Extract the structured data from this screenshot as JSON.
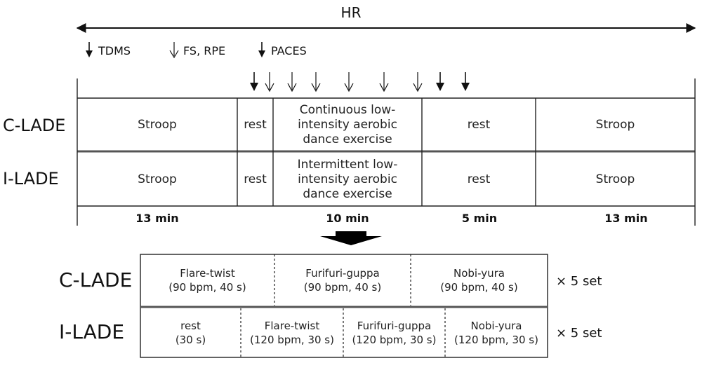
{
  "header": {
    "hr_label": "HR"
  },
  "legend": {
    "tdms": "TDMS",
    "fs_rpe": "FS, RPE",
    "paces": "PACES"
  },
  "top_protocol": {
    "rows": [
      {
        "label": "C-LADE",
        "cells": [
          "Stroop",
          "rest",
          "Continuous low-intensity aerobic dance exercise",
          "rest",
          "Stroop"
        ]
      },
      {
        "label": "I-LADE",
        "cells": [
          "Stroop",
          "rest",
          "Intermittent low-intensity aerobic dance exercise",
          "rest",
          "Stroop"
        ]
      }
    ],
    "durations": [
      "13 min",
      "10 min",
      "5 min",
      "13 min"
    ]
  },
  "bottom_detail": {
    "c_lade": {
      "label": "C-LADE",
      "cells": [
        {
          "name": "Flare-twist",
          "detail": "(90 bpm, 40 s)"
        },
        {
          "name": "Furifuri-guppa",
          "detail": "(90 bpm, 40 s)"
        },
        {
          "name": "Nobi-yura",
          "detail": "(90 bpm, 40 s)"
        }
      ],
      "sets": "× 5 set"
    },
    "i_lade": {
      "label": "I-LADE",
      "cells": [
        {
          "name": "rest",
          "detail": "(30 s)"
        },
        {
          "name": "Flare-twist",
          "detail": "(120 bpm, 30 s)"
        },
        {
          "name": "Furifuri-guppa",
          "detail": "(120 bpm, 30 s)"
        },
        {
          "name": "Nobi-yura",
          "detail": "(120 bpm, 30 s)"
        }
      ],
      "sets": "× 5 set"
    }
  }
}
